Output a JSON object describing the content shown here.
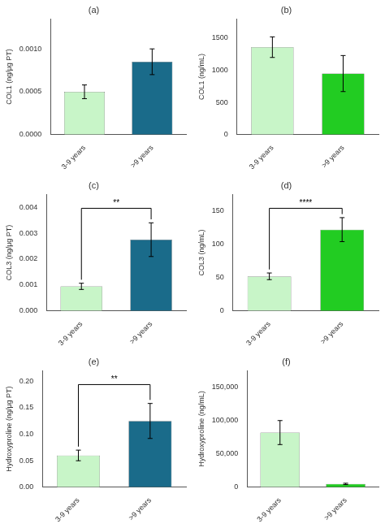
{
  "chart_data": [
    {
      "type": "bar",
      "title": "(a)",
      "y_label": "COL1 (ng/μg PT)",
      "categories": [
        "3-9 years",
        ">9 years"
      ],
      "values": [
        0.0005,
        0.00085
      ],
      "errors": [
        8e-05,
        0.00015
      ],
      "colors": [
        "#c8f5c8",
        "#1a6b8a"
      ],
      "ylim": [
        0,
        0.00135
      ],
      "yticks": [
        {
          "value": 0.0,
          "label": "0.0000"
        },
        0.0005,
        {
          "value": 0.001,
          "label": "0.0010"
        }
      ],
      "grid": false
    },
    {
      "type": "bar",
      "title": "(b)",
      "y_label": "COL1 (ng/mL)",
      "categories": [
        "3-9 years",
        ">9 years"
      ],
      "values": [
        1360,
        950
      ],
      "errors": [
        160,
        280
      ],
      "colors": [
        "#c8f5c8",
        "#22cc22"
      ],
      "ylim": [
        0,
        1800
      ],
      "yticks": [
        0,
        500,
        1000,
        1500
      ],
      "grid": false
    },
    {
      "type": "bar",
      "title": "(c)",
      "y_label": "COL3 (ng/μg PT)",
      "categories": [
        "3-9 years",
        ">9 years"
      ],
      "values": [
        0.00095,
        0.00275
      ],
      "errors": [
        0.00012,
        0.00065
      ],
      "colors": [
        "#c8f5c8",
        "#1a6b8a"
      ],
      "ylim": [
        0,
        0.0045
      ],
      "yticks": [
        {
          "value": 0.0,
          "label": "0.000"
        },
        0.001,
        0.002,
        0.003,
        0.004
      ],
      "grid": false,
      "annotation": "**"
    },
    {
      "type": "bar",
      "title": "(d)",
      "y_label": "COL3 (ng/mL)",
      "categories": [
        "3-9 years",
        ">9 years"
      ],
      "values": [
        52,
        122
      ],
      "errors": [
        5,
        18
      ],
      "colors": [
        "#c8f5c8",
        "#22cc22"
      ],
      "ylim": [
        0,
        175
      ],
      "yticks": [
        0,
        50,
        100,
        150
      ],
      "grid": false,
      "annotation": "****"
    },
    {
      "type": "bar",
      "title": "(e)",
      "y_label": "Hydroxyproline (ng/μg PT)",
      "categories": [
        "3-9 years",
        ">9 years"
      ],
      "values": [
        0.06,
        0.125
      ],
      "errors": [
        0.01,
        0.033
      ],
      "colors": [
        "#c8f5c8",
        "#1a6b8a"
      ],
      "ylim": [
        0,
        0.22
      ],
      "yticks": [
        {
          "value": 0.0,
          "label": "0.00"
        },
        0.05,
        {
          "value": 0.1,
          "label": "0.10"
        },
        0.15,
        {
          "value": 0.2,
          "label": "0.20"
        }
      ],
      "grid": false,
      "annotation": "**"
    },
    {
      "type": "bar",
      "title": "(f)",
      "y_label": "Hydroxyproline (ng/mL)",
      "categories": [
        "3-9 years",
        ">9 years"
      ],
      "values": [
        82000,
        5000
      ],
      "errors": [
        18000,
        1000
      ],
      "colors": [
        "#c8f5c8",
        "#22cc22"
      ],
      "ylim": [
        0,
        175000
      ],
      "yticks": [
        0,
        {
          "value": 50000,
          "label": "50,000"
        },
        {
          "value": 100000,
          "label": "100,000"
        },
        {
          "value": 150000,
          "label": "150,000"
        }
      ],
      "grid": false
    }
  ]
}
